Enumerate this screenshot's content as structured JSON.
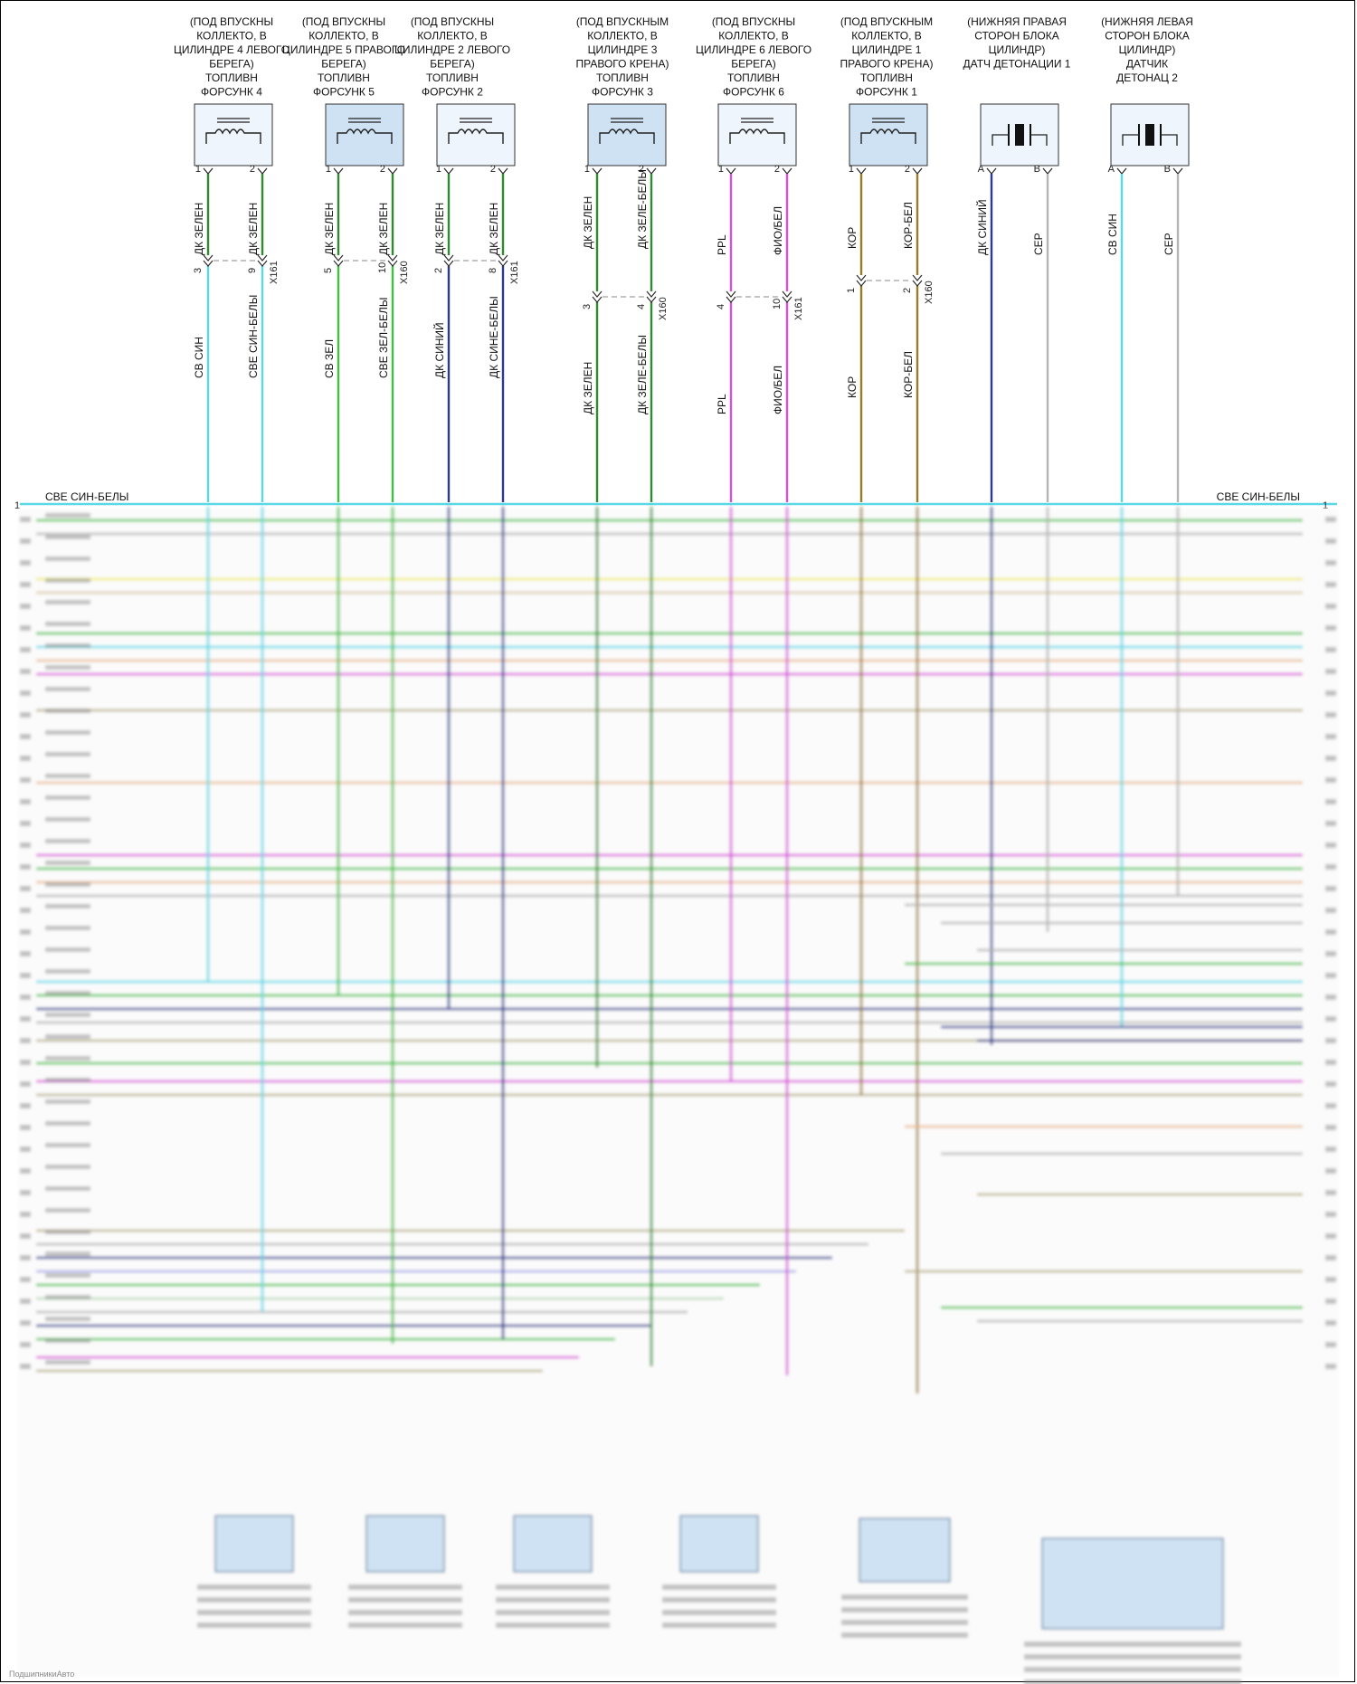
{
  "bus_label_left": "СВЕ СИН-БЕЛЫ",
  "bus_label_right": "СВЕ СИН-БЕЛЫ",
  "bus_pin_left": "1",
  "bus_pin_right": "1",
  "colors": {
    "cyan": "#5ad8e6",
    "green": "#3fbf3f",
    "dkgreen": "#2e8b2e",
    "navy": "#2b3a8c",
    "magenta": "#d94fd9",
    "brown": "#9a7b2e",
    "gray": "#b5b5b5",
    "box": "#cfe2f3"
  },
  "components": [
    {
      "id": "inj4",
      "caption": [
        "(ПОД ВПУСКНЫ",
        "КОЛЛЕКТО, В",
        "ЦИЛИНДРЕ 4 ЛЕВОГО",
        "БЕРЕГА)",
        "ТОПЛИВН",
        "ФОРСУНК 4"
      ],
      "type": "injector",
      "shaded": false
    },
    {
      "id": "inj5",
      "caption": [
        "(ПОД ВПУСКНЫ",
        "КОЛЛЕКТО, В",
        "ЦИЛИНДРЕ 5 ПРАВОГО",
        "БЕРЕГА)",
        "ТОПЛИВН",
        "ФОРСУНК 5"
      ],
      "type": "injector",
      "shaded": true
    },
    {
      "id": "inj2",
      "caption": [
        "(ПОД ВПУСКНЫ",
        "КОЛЛЕКТО, В",
        "ЦИЛИНДРЕ 2 ЛЕВОГО",
        "БЕРЕГА)",
        "ТОПЛИВН",
        "ФОРСУНК 2"
      ],
      "type": "injector",
      "shaded": false
    },
    {
      "id": "inj3",
      "caption": [
        "(ПОД ВПУСКНЫМ",
        "КОЛЛЕКТО, В",
        "ЦИЛИНДРЕ 3",
        "ПРАВОГО КРЕНА)",
        "ТОПЛИВН",
        "ФОРСУНК 3"
      ],
      "type": "injector",
      "shaded": true
    },
    {
      "id": "inj6",
      "caption": [
        "(ПОД ВПУСКНЫ",
        "КОЛЛЕКТО, В",
        "ЦИЛИНДРЕ 6 ЛЕВОГО",
        "БЕРЕГА)",
        "ТОПЛИВН",
        "ФОРСУНК 6"
      ],
      "type": "injector",
      "shaded": false
    },
    {
      "id": "inj1",
      "caption": [
        "(ПОД ВПУСКНЫМ",
        "КОЛЛЕКТО, В",
        "ЦИЛИНДРЕ 1",
        "ПРАВОГО КРЕНА)",
        "ТОПЛИВН",
        "ФОРСУНК 1"
      ],
      "type": "injector",
      "shaded": true
    },
    {
      "id": "ks1",
      "caption": [
        "(НИЖНЯЯ ПРАВАЯ",
        "СТОРОН БЛОКА",
        "ЦИЛИНДР)",
        "ДАТЧ ДЕТОНАЦИИ 1"
      ],
      "type": "knock",
      "shaded": false
    },
    {
      "id": "ks2",
      "caption": [
        "(НИЖНЯЯ ЛЕВАЯ",
        "СТОРОН БЛОКА",
        "ЦИЛИНДР)",
        "ДАТЧИК",
        "ДЕТОНАЦ 2"
      ],
      "type": "knock",
      "shaded": false
    }
  ],
  "wires": [
    {
      "pin": "1",
      "upper": "ДК ЗЕЛЕН",
      "cpin": "3",
      "lower": "СВ СИН",
      "color": "cyan_up"
    },
    {
      "pin": "2",
      "upper": "ДК ЗЕЛЕН",
      "cpin": "9",
      "lower": "СВЕ СИН-БЕЛЫ",
      "conn": "X161"
    },
    {
      "pin": "1",
      "upper": "ДК ЗЕЛЕН",
      "cpin": "5",
      "lower": "СВ ЗЕЛ"
    },
    {
      "pin": "2",
      "upper": "ДК ЗЕЛЕН",
      "cpin": "10",
      "lower": "СВЕ ЗЕЛ-БЕЛЫ",
      "conn": "X160"
    },
    {
      "pin": "1",
      "upper": "ДК ЗЕЛЕН",
      "cpin": "2",
      "lower": "ДК СИНИЙ"
    },
    {
      "pin": "2",
      "upper": "ДК ЗЕЛЕН",
      "cpin": "8",
      "lower": "ДК СИНЕ-БЕЛЫ",
      "conn": "X161"
    },
    {
      "pin": "1",
      "upper": "ДК ЗЕЛЕН",
      "cpin": "3",
      "lower": "ДК ЗЕЛЕН"
    },
    {
      "pin": "2",
      "upper": "ДК ЗЕЛЕ-БЕЛЫ",
      "cpin": "4",
      "lower": "ДК ЗЕЛЕ-БЕЛЫ",
      "conn": "X160"
    },
    {
      "pin": "1",
      "upper": "PPL",
      "cpin": "4",
      "lower": "PPL"
    },
    {
      "pin": "2",
      "upper": "ФИО/БЕЛ",
      "cpin": "10",
      "lower": "ФИО/БЕЛ",
      "conn": "X161"
    },
    {
      "pin": "1",
      "upper": "КОР",
      "cpin": "1",
      "lower": "КОР"
    },
    {
      "pin": "2",
      "upper": "КОР-БЕЛ",
      "cpin": "2",
      "lower": "КОР-БЕЛ",
      "conn": "X160"
    },
    {
      "pin": "A",
      "upper": "ДК СИНИЙ"
    },
    {
      "pin": "B",
      "upper": "СЕР"
    },
    {
      "pin": "A",
      "upper": "СВ СИН"
    },
    {
      "pin": "B",
      "upper": "СЕР"
    }
  ],
  "footer": "ПодшипникиАвто"
}
